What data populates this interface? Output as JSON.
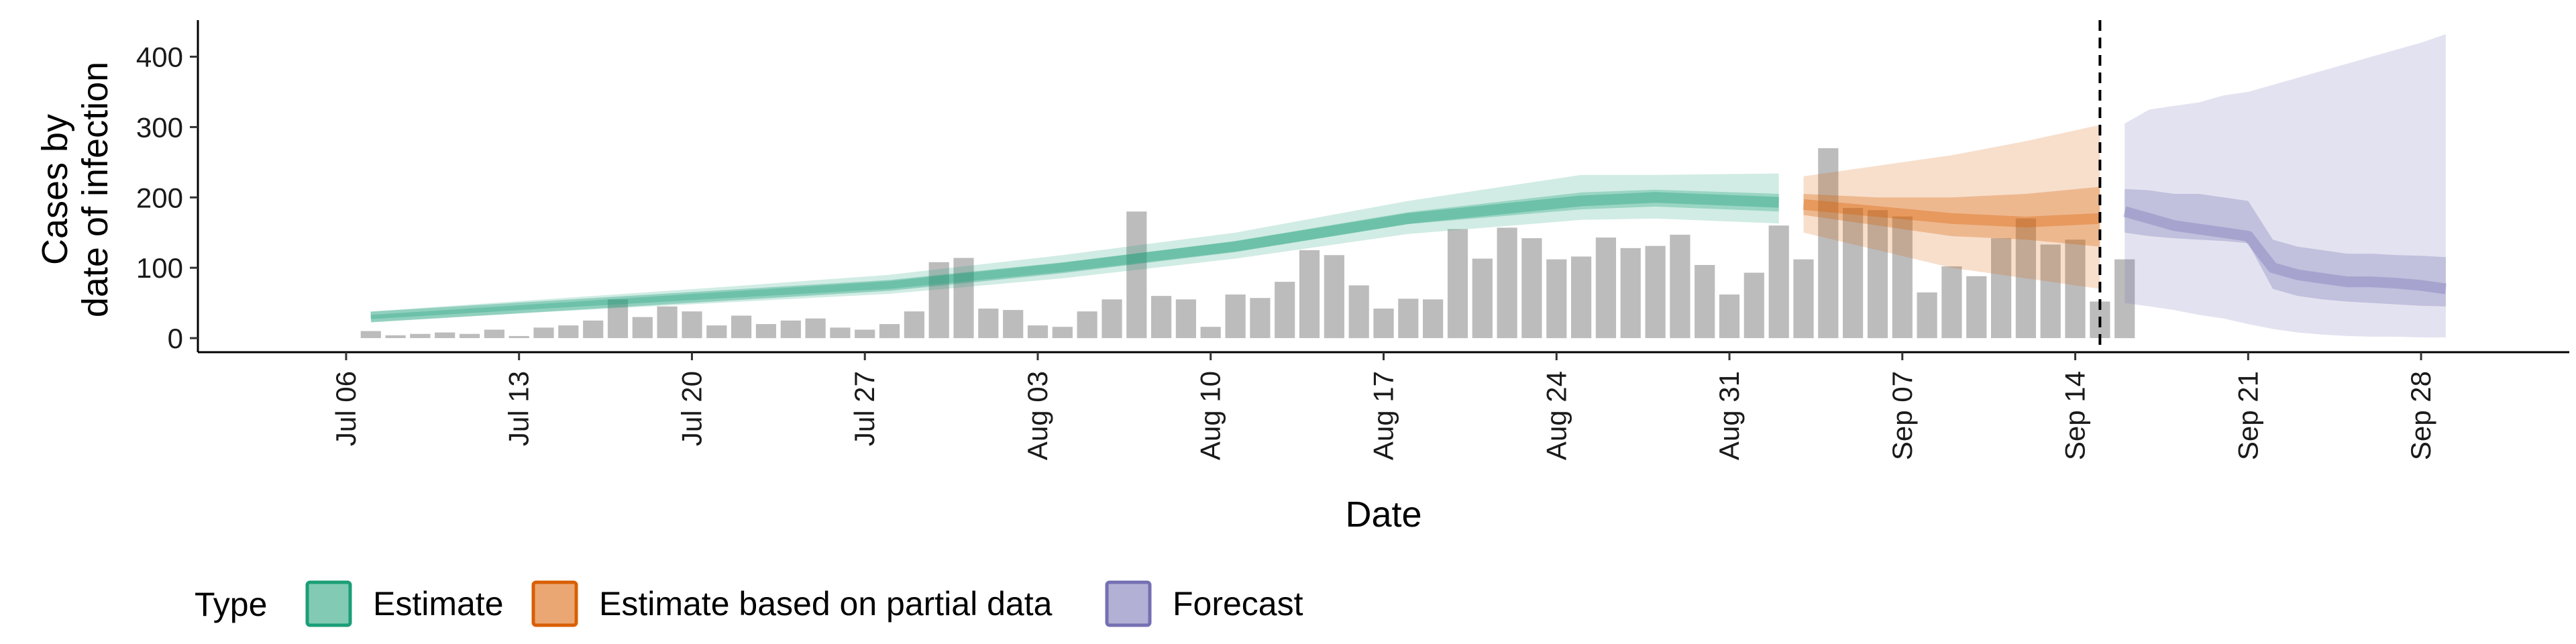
{
  "chart_data": {
    "type": "bar",
    "xlabel": "Date",
    "ylabel": [
      "Cases by",
      "date of infection"
    ],
    "ylim": [
      -20,
      452
    ],
    "yticks": [
      0,
      100,
      200,
      300,
      400
    ],
    "start_date": "2020-07-01",
    "xlim": [
      "2020-06-30",
      "2020-10-04"
    ],
    "xticks": [
      {
        "date": "2020-07-06",
        "label": "Jul 06"
      },
      {
        "date": "2020-07-13",
        "label": "Jul 13"
      },
      {
        "date": "2020-07-20",
        "label": "Jul 20"
      },
      {
        "date": "2020-07-27",
        "label": "Jul 27"
      },
      {
        "date": "2020-08-03",
        "label": "Aug 03"
      },
      {
        "date": "2020-08-10",
        "label": "Aug 10"
      },
      {
        "date": "2020-08-17",
        "label": "Aug 17"
      },
      {
        "date": "2020-08-24",
        "label": "Aug 24"
      },
      {
        "date": "2020-08-31",
        "label": "Aug 31"
      },
      {
        "date": "2020-09-07",
        "label": "Sep 07"
      },
      {
        "date": "2020-09-14",
        "label": "Sep 14"
      },
      {
        "date": "2020-09-21",
        "label": "Sep 21"
      },
      {
        "date": "2020-09-28",
        "label": "Sep 28"
      }
    ],
    "reported_cases": {
      "start_date": "2020-07-07",
      "values": [
        10,
        4,
        6,
        8,
        6,
        12,
        3,
        15,
        18,
        25,
        55,
        30,
        45,
        38,
        18,
        32,
        20,
        25,
        28,
        15,
        12,
        20,
        38,
        108,
        114,
        42,
        40,
        18,
        16,
        38,
        55,
        180,
        60,
        55,
        16,
        62,
        57,
        80,
        125,
        118,
        75,
        42,
        56,
        55,
        155,
        113,
        157,
        142,
        112,
        116,
        143,
        128,
        131,
        147,
        104,
        62,
        93,
        160,
        112,
        270,
        185,
        182,
        173,
        65,
        102,
        88,
        142,
        170,
        133,
        140,
        52,
        112
      ]
    },
    "series": [
      {
        "name": "Estimate",
        "color": "#1b9e77",
        "x": [
          "2020-07-07",
          "2020-07-14",
          "2020-07-21",
          "2020-07-28",
          "2020-08-04",
          "2020-08-11",
          "2020-08-18",
          "2020-08-25",
          "2020-08-28",
          "2020-09-02"
        ],
        "median": [
          30,
          45,
          60,
          75,
          100,
          130,
          170,
          195,
          200,
          193
        ],
        "lower50": [
          27,
          42,
          56,
          70,
          94,
          123,
          162,
          183,
          187,
          180
        ],
        "upper50": [
          33,
          49,
          65,
          81,
          107,
          138,
          179,
          207,
          211,
          205
        ],
        "lower90": [
          23,
          37,
          50,
          63,
          85,
          113,
          148,
          168,
          170,
          163
        ],
        "upper90": [
          38,
          55,
          72,
          90,
          118,
          150,
          195,
          232,
          232,
          234
        ]
      },
      {
        "name": "Estimate based on partial data",
        "color": "#d95f02",
        "x": [
          "2020-09-03",
          "2020-09-06",
          "2020-09-09",
          "2020-09-12",
          "2020-09-15"
        ],
        "median": [
          190,
          180,
          170,
          165,
          170
        ],
        "lower50": [
          175,
          160,
          145,
          140,
          130
        ],
        "upper50": [
          205,
          200,
          200,
          205,
          215
        ],
        "lower90": [
          150,
          125,
          100,
          85,
          70
        ],
        "upper90": [
          230,
          245,
          260,
          280,
          303
        ]
      },
      {
        "name": "Forecast",
        "color": "#7570b3",
        "x": [
          "2020-09-16",
          "2020-09-17",
          "2020-09-18",
          "2020-09-19",
          "2020-09-20",
          "2020-09-21",
          "2020-09-22",
          "2020-09-23",
          "2020-09-24",
          "2020-09-25",
          "2020-09-26",
          "2020-09-27",
          "2020-09-28",
          "2020-09-29"
        ],
        "median": [
          180,
          170,
          160,
          155,
          150,
          145,
          100,
          90,
          85,
          80,
          80,
          78,
          75,
          70
        ],
        "lower50": [
          150,
          145,
          142,
          140,
          138,
          135,
          70,
          60,
          55,
          52,
          50,
          48,
          46,
          45
        ],
        "upper50": [
          212,
          210,
          205,
          205,
          200,
          195,
          140,
          130,
          125,
          120,
          120,
          118,
          117,
          115
        ],
        "lower90": [
          50,
          45,
          40,
          33,
          28,
          20,
          13,
          8,
          5,
          3,
          2,
          2,
          1,
          1
        ],
        "upper90": [
          305,
          325,
          330,
          335,
          345,
          350,
          360,
          370,
          380,
          390,
          400,
          410,
          420,
          432
        ]
      }
    ],
    "vline_date": "2020-09-15",
    "legend": {
      "title": "Type",
      "position": "bottom",
      "items": [
        "Estimate",
        "Estimate based on partial data",
        "Forecast"
      ]
    },
    "grid": false
  }
}
